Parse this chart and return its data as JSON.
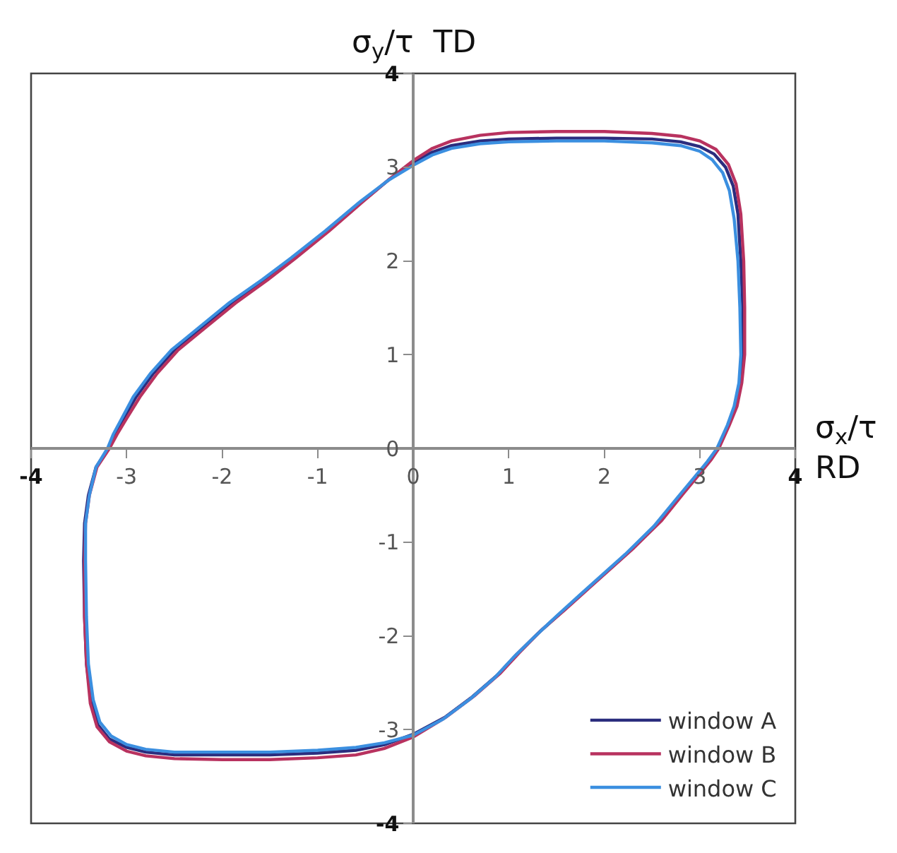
{
  "chart_data": {
    "type": "line",
    "xlabel": "σ$_{x}$/τ\nRD",
    "ylabel": "σ$_{y}$/τ  TD",
    "xlim": [
      -4,
      4
    ],
    "ylim": [
      -4,
      4
    ],
    "xticks": [
      -4,
      -3,
      -2,
      -1,
      0,
      1,
      2,
      3,
      4
    ],
    "yticks": [
      -4,
      -3,
      -2,
      -1,
      0,
      1,
      2,
      3,
      4
    ],
    "legend": "bottom right",
    "line_style": "solid",
    "series": [
      {
        "name": "window A",
        "color": "#2b2d7e",
        "x": [
          0,
          0.2,
          0.4,
          0.7,
          1.0,
          1.5,
          2.0,
          2.5,
          2.8,
          3.0,
          3.15,
          3.27,
          3.35,
          3.4,
          3.43,
          3.45,
          3.45,
          3.42,
          3.37,
          3.3,
          3.19,
          3.1,
          2.98,
          2.8,
          2.56,
          2.26,
          1.8,
          1.55,
          1.3,
          1.08,
          0.88,
          0.62,
          0.33,
          0,
          -0.3,
          -0.6,
          -1.0,
          -1.5,
          -2.0,
          -2.5,
          -2.8,
          -3.0,
          -3.18,
          -3.3,
          -3.37,
          -3.42,
          -3.44,
          -3.45,
          -3.44,
          -3.4,
          -3.32,
          -3.19,
          -3.12,
          -3.03,
          -2.9,
          -2.72,
          -2.5,
          -2.2,
          -1.9,
          -1.55,
          -1.25,
          -0.9,
          -0.55,
          -0.25,
          0,
          0.2
        ],
        "values": [
          3.05,
          3.16,
          3.23,
          3.28,
          3.3,
          3.31,
          3.31,
          3.3,
          3.27,
          3.22,
          3.14,
          3.0,
          2.8,
          2.5,
          2.0,
          1.5,
          1.0,
          0.7,
          0.45,
          0.25,
          0,
          -0.12,
          -0.28,
          -0.5,
          -0.8,
          -1.1,
          -1.52,
          -1.75,
          -1.98,
          -2.2,
          -2.42,
          -2.65,
          -2.87,
          -3.05,
          -3.16,
          -3.22,
          -3.25,
          -3.27,
          -3.27,
          -3.27,
          -3.24,
          -3.19,
          -3.1,
          -2.95,
          -2.7,
          -2.3,
          -1.8,
          -1.2,
          -0.8,
          -0.5,
          -0.2,
          0,
          0.15,
          0.32,
          0.55,
          0.8,
          1.05,
          1.3,
          1.55,
          1.8,
          2.03,
          2.32,
          2.62,
          2.87,
          3.05,
          3.16
        ]
      },
      {
        "name": "window B",
        "color": "#b8325f",
        "x": [
          0,
          0.2,
          0.4,
          0.7,
          1.0,
          1.5,
          2.0,
          2.5,
          2.8,
          3.0,
          3.17,
          3.3,
          3.38,
          3.43,
          3.46,
          3.47,
          3.47,
          3.44,
          3.39,
          3.31,
          3.2,
          3.12,
          3.0,
          2.83,
          2.6,
          2.3,
          1.84,
          1.59,
          1.33,
          1.11,
          0.91,
          0.64,
          0.34,
          0,
          -0.3,
          -0.6,
          -1.0,
          -1.5,
          -2.0,
          -2.5,
          -2.8,
          -3.0,
          -3.18,
          -3.31,
          -3.38,
          -3.42,
          -3.44,
          -3.44,
          -3.43,
          -3.39,
          -3.31,
          -3.18,
          -3.1,
          -3.0,
          -2.86,
          -2.68,
          -2.46,
          -2.16,
          -1.86,
          -1.52,
          -1.23,
          -0.88,
          -0.54,
          -0.24,
          0,
          0.2
        ],
        "values": [
          3.07,
          3.2,
          3.28,
          3.34,
          3.37,
          3.38,
          3.38,
          3.36,
          3.33,
          3.28,
          3.19,
          3.03,
          2.82,
          2.5,
          2.0,
          1.5,
          1.0,
          0.7,
          0.45,
          0.25,
          0,
          -0.12,
          -0.27,
          -0.48,
          -0.77,
          -1.07,
          -1.49,
          -1.72,
          -1.95,
          -2.18,
          -2.4,
          -2.64,
          -2.87,
          -3.08,
          -3.2,
          -3.27,
          -3.3,
          -3.32,
          -3.32,
          -3.31,
          -3.28,
          -3.23,
          -3.13,
          -2.97,
          -2.72,
          -2.3,
          -1.8,
          -1.2,
          -0.8,
          -0.5,
          -0.2,
          0,
          0.15,
          0.32,
          0.55,
          0.8,
          1.05,
          1.3,
          1.55,
          1.8,
          2.03,
          2.32,
          2.62,
          2.88,
          3.07,
          3.2
        ]
      },
      {
        "name": "window C",
        "color": "#3b8fe0",
        "x": [
          0,
          0.2,
          0.4,
          0.7,
          1.0,
          1.5,
          2.0,
          2.5,
          2.8,
          3.0,
          3.13,
          3.24,
          3.31,
          3.36,
          3.4,
          3.42,
          3.43,
          3.41,
          3.36,
          3.29,
          3.18,
          3.08,
          2.95,
          2.77,
          2.52,
          2.22,
          1.76,
          1.51,
          1.27,
          1.05,
          0.85,
          0.6,
          0.31,
          0,
          -0.3,
          -0.6,
          -1.0,
          -1.5,
          -2.0,
          -2.5,
          -2.8,
          -3.0,
          -3.16,
          -3.28,
          -3.35,
          -3.4,
          -3.42,
          -3.43,
          -3.43,
          -3.39,
          -3.32,
          -3.2,
          -3.14,
          -3.05,
          -2.93,
          -2.75,
          -2.53,
          -2.23,
          -1.93,
          -1.58,
          -1.28,
          -0.92,
          -0.57,
          -0.26,
          0,
          0.2
        ],
        "values": [
          3.02,
          3.13,
          3.2,
          3.25,
          3.27,
          3.28,
          3.28,
          3.26,
          3.23,
          3.17,
          3.08,
          2.94,
          2.75,
          2.45,
          2.0,
          1.5,
          1.0,
          0.7,
          0.45,
          0.25,
          0,
          -0.14,
          -0.3,
          -0.52,
          -0.83,
          -1.13,
          -1.55,
          -1.78,
          -2.01,
          -2.23,
          -2.45,
          -2.67,
          -2.89,
          -3.06,
          -3.14,
          -3.19,
          -3.22,
          -3.24,
          -3.24,
          -3.24,
          -3.21,
          -3.16,
          -3.07,
          -2.92,
          -2.68,
          -2.3,
          -1.8,
          -1.2,
          -0.8,
          -0.5,
          -0.2,
          0,
          0.15,
          0.32,
          0.55,
          0.8,
          1.05,
          1.3,
          1.55,
          1.8,
          2.03,
          2.32,
          2.62,
          2.86,
          3.02,
          3.13
        ]
      }
    ]
  }
}
